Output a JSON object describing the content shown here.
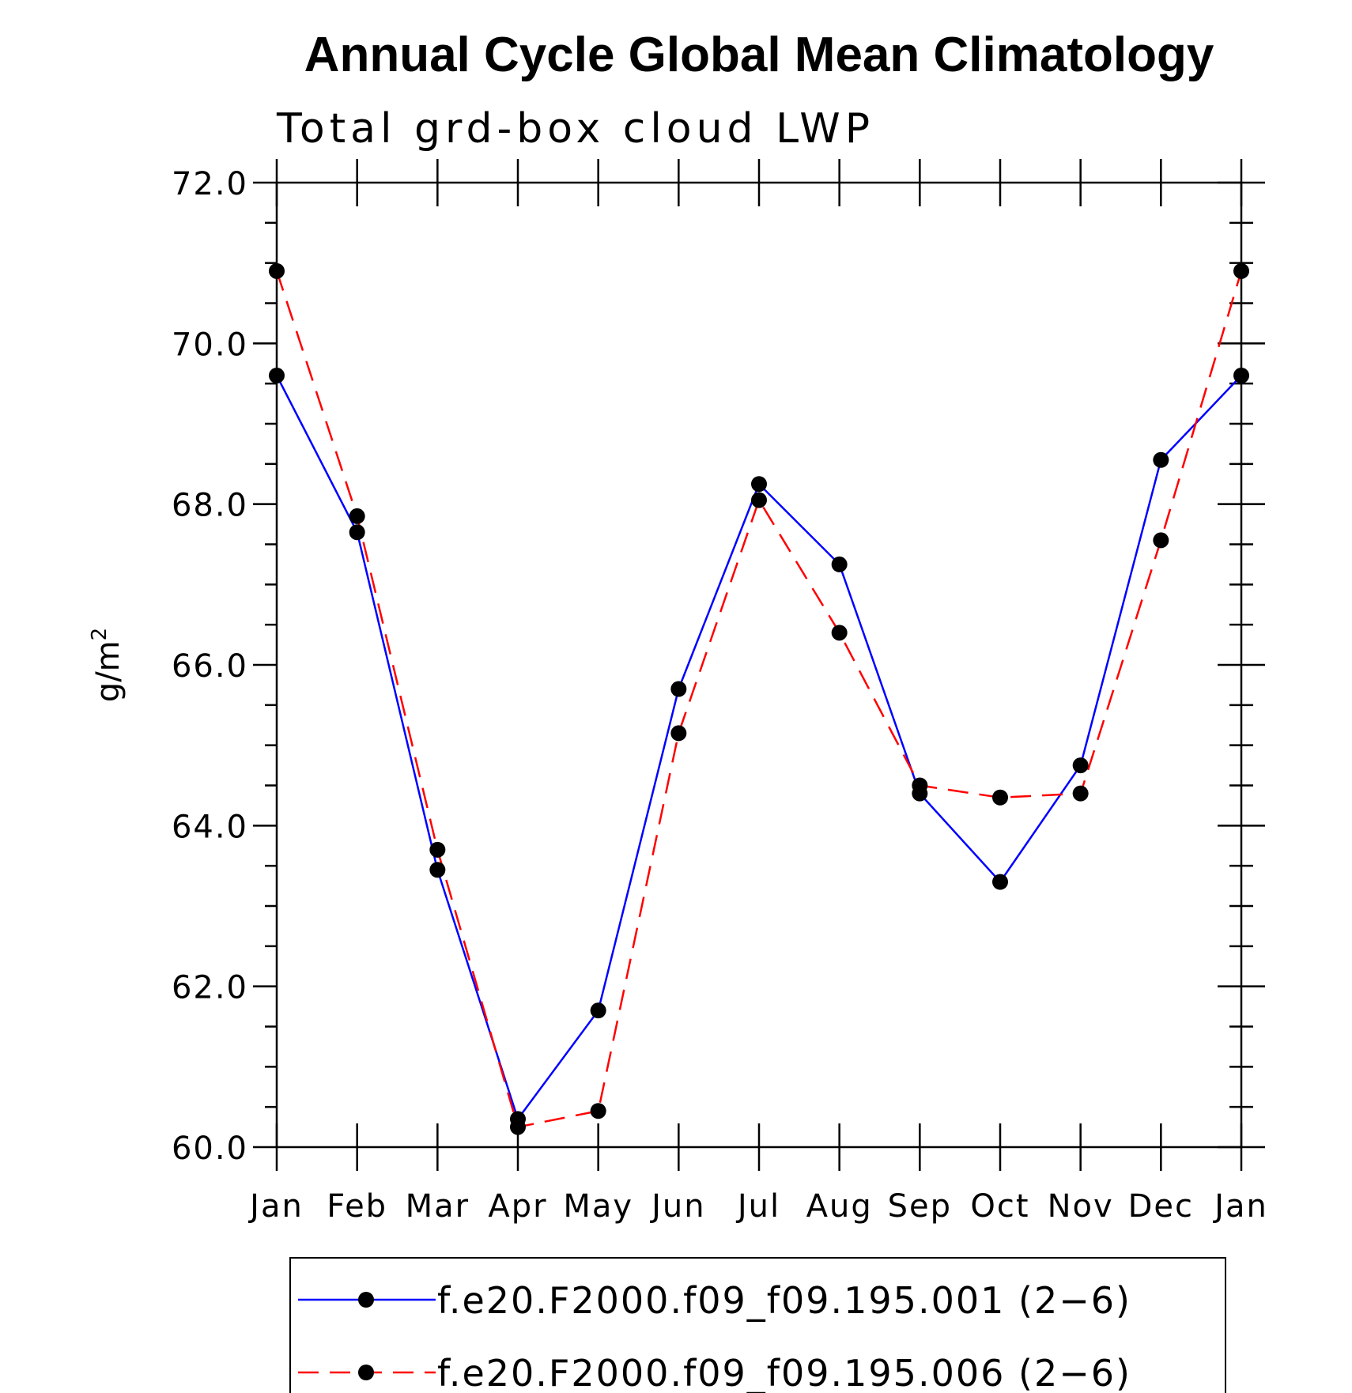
{
  "chart_data": {
    "type": "line",
    "title": "Annual Cycle Global Mean Climatology",
    "subtitle": "Total grd-box cloud LWP",
    "xlabel": "",
    "ylabel": "g/m",
    "ylabel_superscript": "2",
    "categories": [
      "Jan",
      "Feb",
      "Mar",
      "Apr",
      "May",
      "Jun",
      "Jul",
      "Aug",
      "Sep",
      "Oct",
      "Nov",
      "Dec",
      "Jan"
    ],
    "ylim": [
      60.0,
      72.0
    ],
    "yticks": [
      "60.0",
      "62.0",
      "64.0",
      "66.0",
      "68.0",
      "70.0",
      "72.0"
    ],
    "grid": false,
    "legend_position": "bottom",
    "series": [
      {
        "name": "f.e20.F2000.f09_f09.195.001 (2−6)",
        "color": "#0000ff",
        "line_style": "solid",
        "values": [
          69.6,
          67.65,
          63.45,
          60.35,
          61.7,
          65.7,
          68.25,
          67.25,
          64.4,
          63.3,
          64.75,
          68.55,
          69.6
        ]
      },
      {
        "name": "f.e20.F2000.f09_f09.195.006 (2−6)",
        "color": "#ff0000",
        "line_style": "dashed",
        "values": [
          70.9,
          67.85,
          63.7,
          60.25,
          60.45,
          65.15,
          68.05,
          66.4,
          64.5,
          64.35,
          64.4,
          67.55,
          70.9
        ]
      }
    ]
  }
}
